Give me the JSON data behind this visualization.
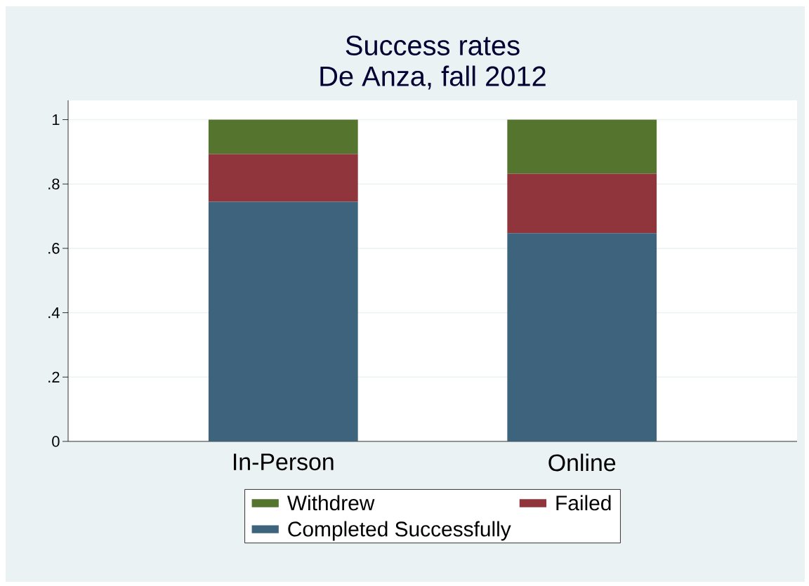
{
  "chart_data": {
    "type": "bar",
    "title": "Success rates",
    "subtitle": "De Anza, fall 2012",
    "categories": [
      "In-Person",
      "Online"
    ],
    "series": [
      {
        "name": "Completed Successfully",
        "color": "#3e647d",
        "values": [
          0.745,
          0.647
        ]
      },
      {
        "name": "Failed",
        "color": "#90353b",
        "values": [
          0.148,
          0.185
        ]
      },
      {
        "name": "Withdrew",
        "color": "#55752f",
        "values": [
          0.107,
          0.168
        ]
      }
    ],
    "stacked": true,
    "ylim": [
      0,
      1.06
    ],
    "yticks": [
      0,
      {
        "value": 0.2,
        "label": ".2"
      },
      {
        "value": 0.4,
        "label": ".4"
      },
      {
        "value": 0.6,
        "label": ".6"
      },
      {
        "value": 0.8,
        "label": ".8"
      },
      1
    ],
    "grid": "y",
    "legend": "bottom"
  }
}
